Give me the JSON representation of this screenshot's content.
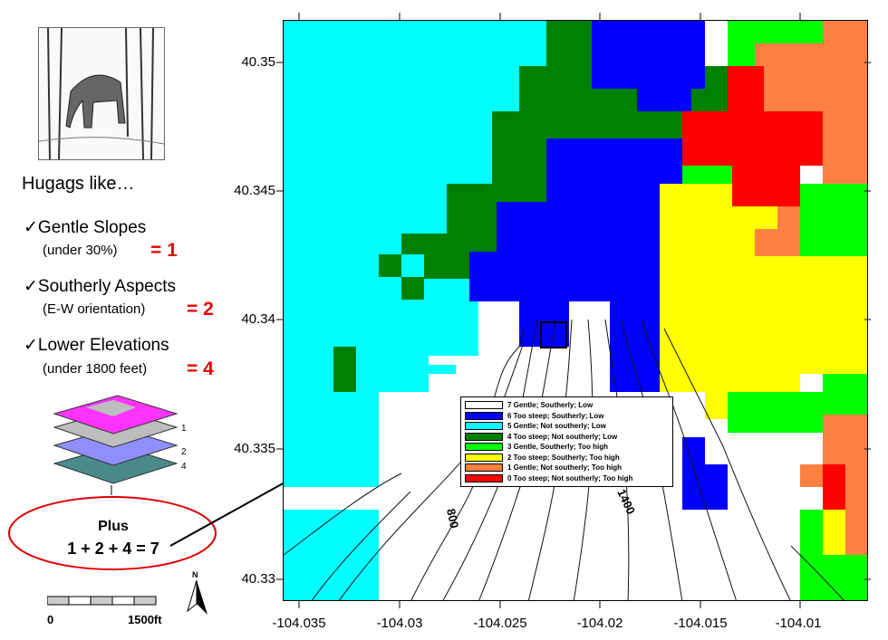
{
  "left_panel": {
    "heading": "Hugags like…",
    "criteria": [
      {
        "label": "✓Gentle Slopes",
        "detail": "(under 30%)",
        "value": "= 1"
      },
      {
        "label": "✓Southerly Aspects",
        "detail": "(E-W orientation)",
        "value": "= 2"
      },
      {
        "label": "✓Lower Elevations",
        "detail": "(under 1800 feet)",
        "value": "= 4"
      }
    ],
    "layer_numbers": [
      "1",
      "2",
      "4"
    ],
    "plus_label": "Plus",
    "plus_equation": "1 + 2 + 4 = 7",
    "scale": {
      "start": "0",
      "end": "1500ft"
    },
    "north_label": "N"
  },
  "map": {
    "y_ticks": [
      "40.35",
      "40.345",
      "40.34",
      "40.335",
      "40.33"
    ],
    "x_ticks": [
      "-104.035",
      "-104.03",
      "-104.025",
      "-104.02",
      "-104.015",
      "-104.01"
    ],
    "contour_labels": [
      "800",
      "1400"
    ],
    "colors": {
      "c7": "#ffffff",
      "c6": "#0000ff",
      "c5": "#00ffff",
      "c4": "#008000",
      "c3": "#00ff00",
      "c2": "#ffff00",
      "c1": "#ff8040",
      "c0": "#ff0000"
    },
    "legend": [
      {
        "code": "c7",
        "label": "7 Gentle; Southerly; Low"
      },
      {
        "code": "c6",
        "label": "6 Too steep; Southerly; Low"
      },
      {
        "code": "c5",
        "label": "5 Gentle; Not southerly; Low"
      },
      {
        "code": "c4",
        "label": "4 Too steep; Not southerly; Low"
      },
      {
        "code": "c3",
        "label": "3 Gentle, Southerly; Too high"
      },
      {
        "code": "c2",
        "label": "2 Too steep; Southerly; Too high"
      },
      {
        "code": "c1",
        "label": "1 Gentle; Not southerly; Too high"
      },
      {
        "code": "c0",
        "label": "0 Too steep; Not southerly; Too high"
      }
    ]
  }
}
